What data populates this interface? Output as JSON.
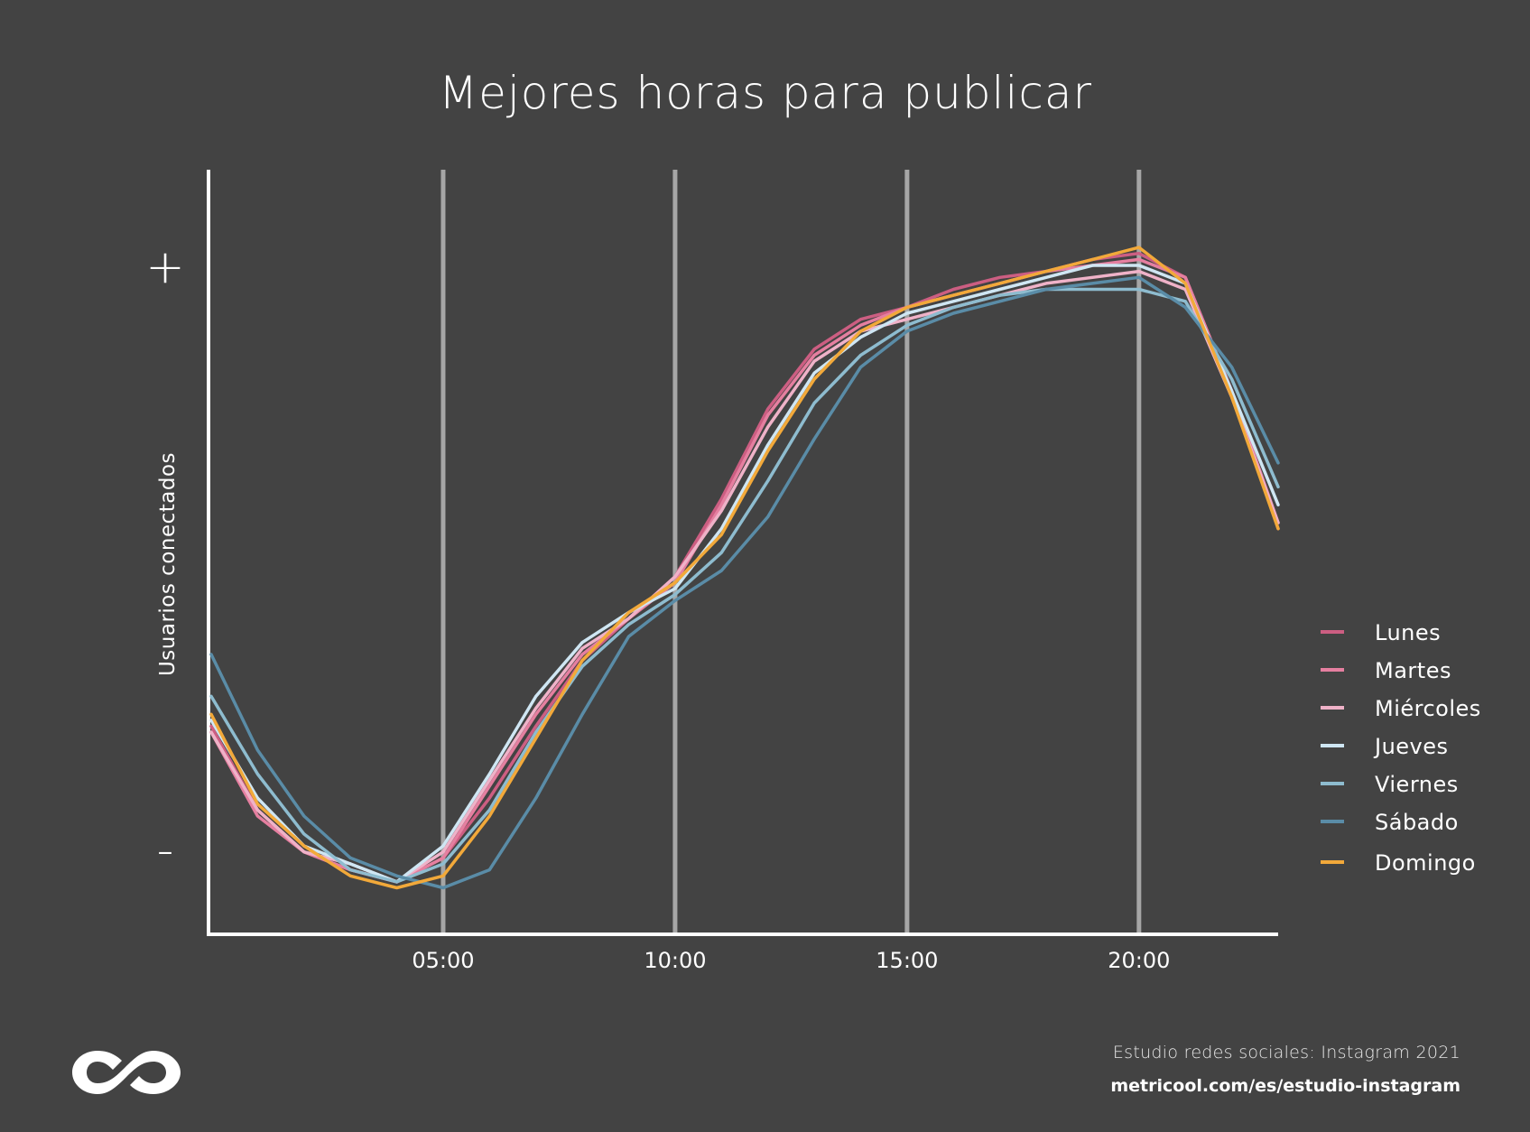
{
  "footer": {
    "source": "Estudio redes sociales: Instagram 2021",
    "url": "metricool.com/es/estudio-instagram"
  },
  "logo": {
    "icon": "infinity-logo-icon"
  },
  "chart_data": {
    "type": "line",
    "title": "Mejores horas para publicar",
    "xlabel": "",
    "ylabel": "Usuarios conectados",
    "y_tick_labels": {
      "high": "+",
      "low": "-"
    },
    "x": [
      0,
      1,
      2,
      3,
      4,
      5,
      6,
      7,
      8,
      9,
      10,
      11,
      12,
      13,
      14,
      15,
      16,
      17,
      18,
      19,
      20,
      21,
      22,
      23
    ],
    "x_ticks": [
      5,
      10,
      15,
      20
    ],
    "x_tick_labels": [
      "05:00",
      "10:00",
      "15:00",
      "20:00"
    ],
    "xlim": [
      0,
      23
    ],
    "ylim": [
      0,
      100
    ],
    "grid": "vertical",
    "legend": "right",
    "series": [
      {
        "name": "Lunes",
        "color": "#cc5e82",
        "values": [
          23,
          9,
          2,
          -1,
          -3,
          1,
          11,
          23,
          34,
          41,
          48,
          61,
          76,
          86,
          91,
          93,
          96,
          98,
          99,
          101,
          102,
          98,
          79,
          56
        ]
      },
      {
        "name": "Martes",
        "color": "#e57fa0",
        "values": [
          22,
          8,
          2,
          -1,
          -3,
          1,
          13,
          25,
          35,
          41,
          47,
          60,
          75,
          85,
          90,
          93,
          95,
          97,
          99,
          100,
          101,
          98,
          79,
          57
        ]
      },
      {
        "name": "Miércoles",
        "color": "#efb2c8",
        "values": [
          22,
          9,
          2,
          0,
          -3,
          2,
          14,
          26,
          36,
          41,
          48,
          59,
          73,
          84,
          89,
          91,
          93,
          95,
          97,
          98,
          99,
          96,
          78,
          57
        ]
      },
      {
        "name": "Jueves",
        "color": "#cfe6f3",
        "values": [
          24,
          11,
          3,
          0,
          -3,
          3,
          15,
          28,
          37,
          42,
          46,
          56,
          70,
          82,
          88,
          92,
          94,
          96,
          98,
          100,
          100,
          97,
          79,
          60
        ]
      },
      {
        "name": "Viernes",
        "color": "#8ebccf",
        "values": [
          28,
          15,
          5,
          -1,
          -3,
          0,
          9,
          22,
          33,
          40,
          45,
          52,
          64,
          77,
          85,
          90,
          93,
          95,
          96,
          96,
          96,
          94,
          81,
          63
        ]
      },
      {
        "name": "Sábado",
        "color": "#5a8ca7",
        "values": [
          35,
          19,
          8,
          1,
          -2,
          -4,
          -1,
          11,
          25,
          38,
          44,
          49,
          58,
          71,
          83,
          89,
          92,
          94,
          96,
          97,
          98,
          93,
          83,
          67
        ]
      },
      {
        "name": "Domingo",
        "color": "#f2a93a",
        "values": [
          25,
          10,
          3,
          -2,
          -4,
          -2,
          8,
          21,
          34,
          42,
          47,
          55,
          69,
          81,
          89,
          93,
          95,
          97,
          99,
          101,
          103,
          97,
          78,
          56
        ]
      }
    ]
  }
}
